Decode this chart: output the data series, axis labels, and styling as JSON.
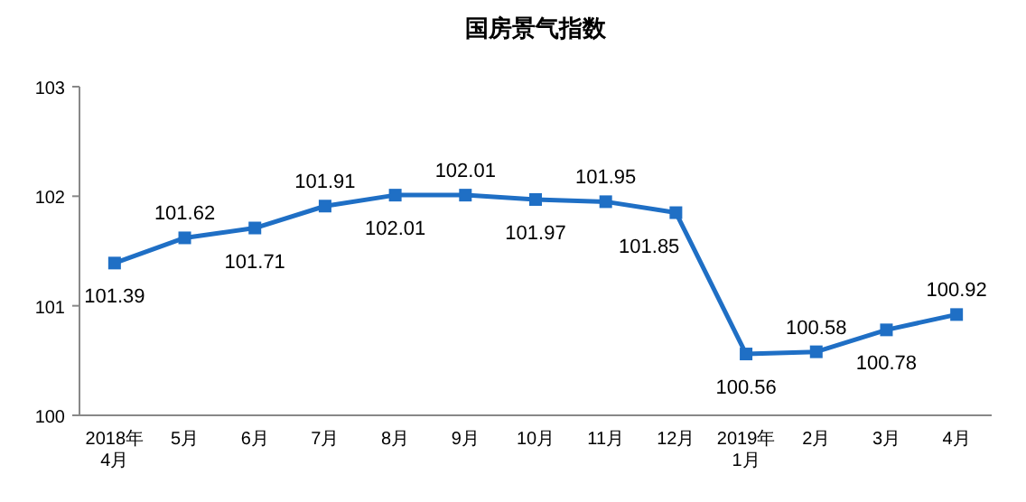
{
  "chart_data": {
    "type": "line",
    "title": "国房景气指数",
    "categories": [
      "2018年\n4月",
      "5月",
      "6月",
      "7月",
      "8月",
      "9月",
      "10月",
      "11月",
      "12月",
      "2019年\n1月",
      "2月",
      "3月",
      "4月"
    ],
    "series": [
      {
        "color": "#1f6fc5",
        "values": [
          101.39,
          101.62,
          101.71,
          101.91,
          102.01,
          102.01,
          101.97,
          101.95,
          101.85,
          100.56,
          100.58,
          100.78,
          100.92
        ]
      }
    ],
    "ylim": [
      100,
      103
    ],
    "yticks": [
      100,
      101,
      102,
      103
    ],
    "marker": "square",
    "data_labels": true
  }
}
